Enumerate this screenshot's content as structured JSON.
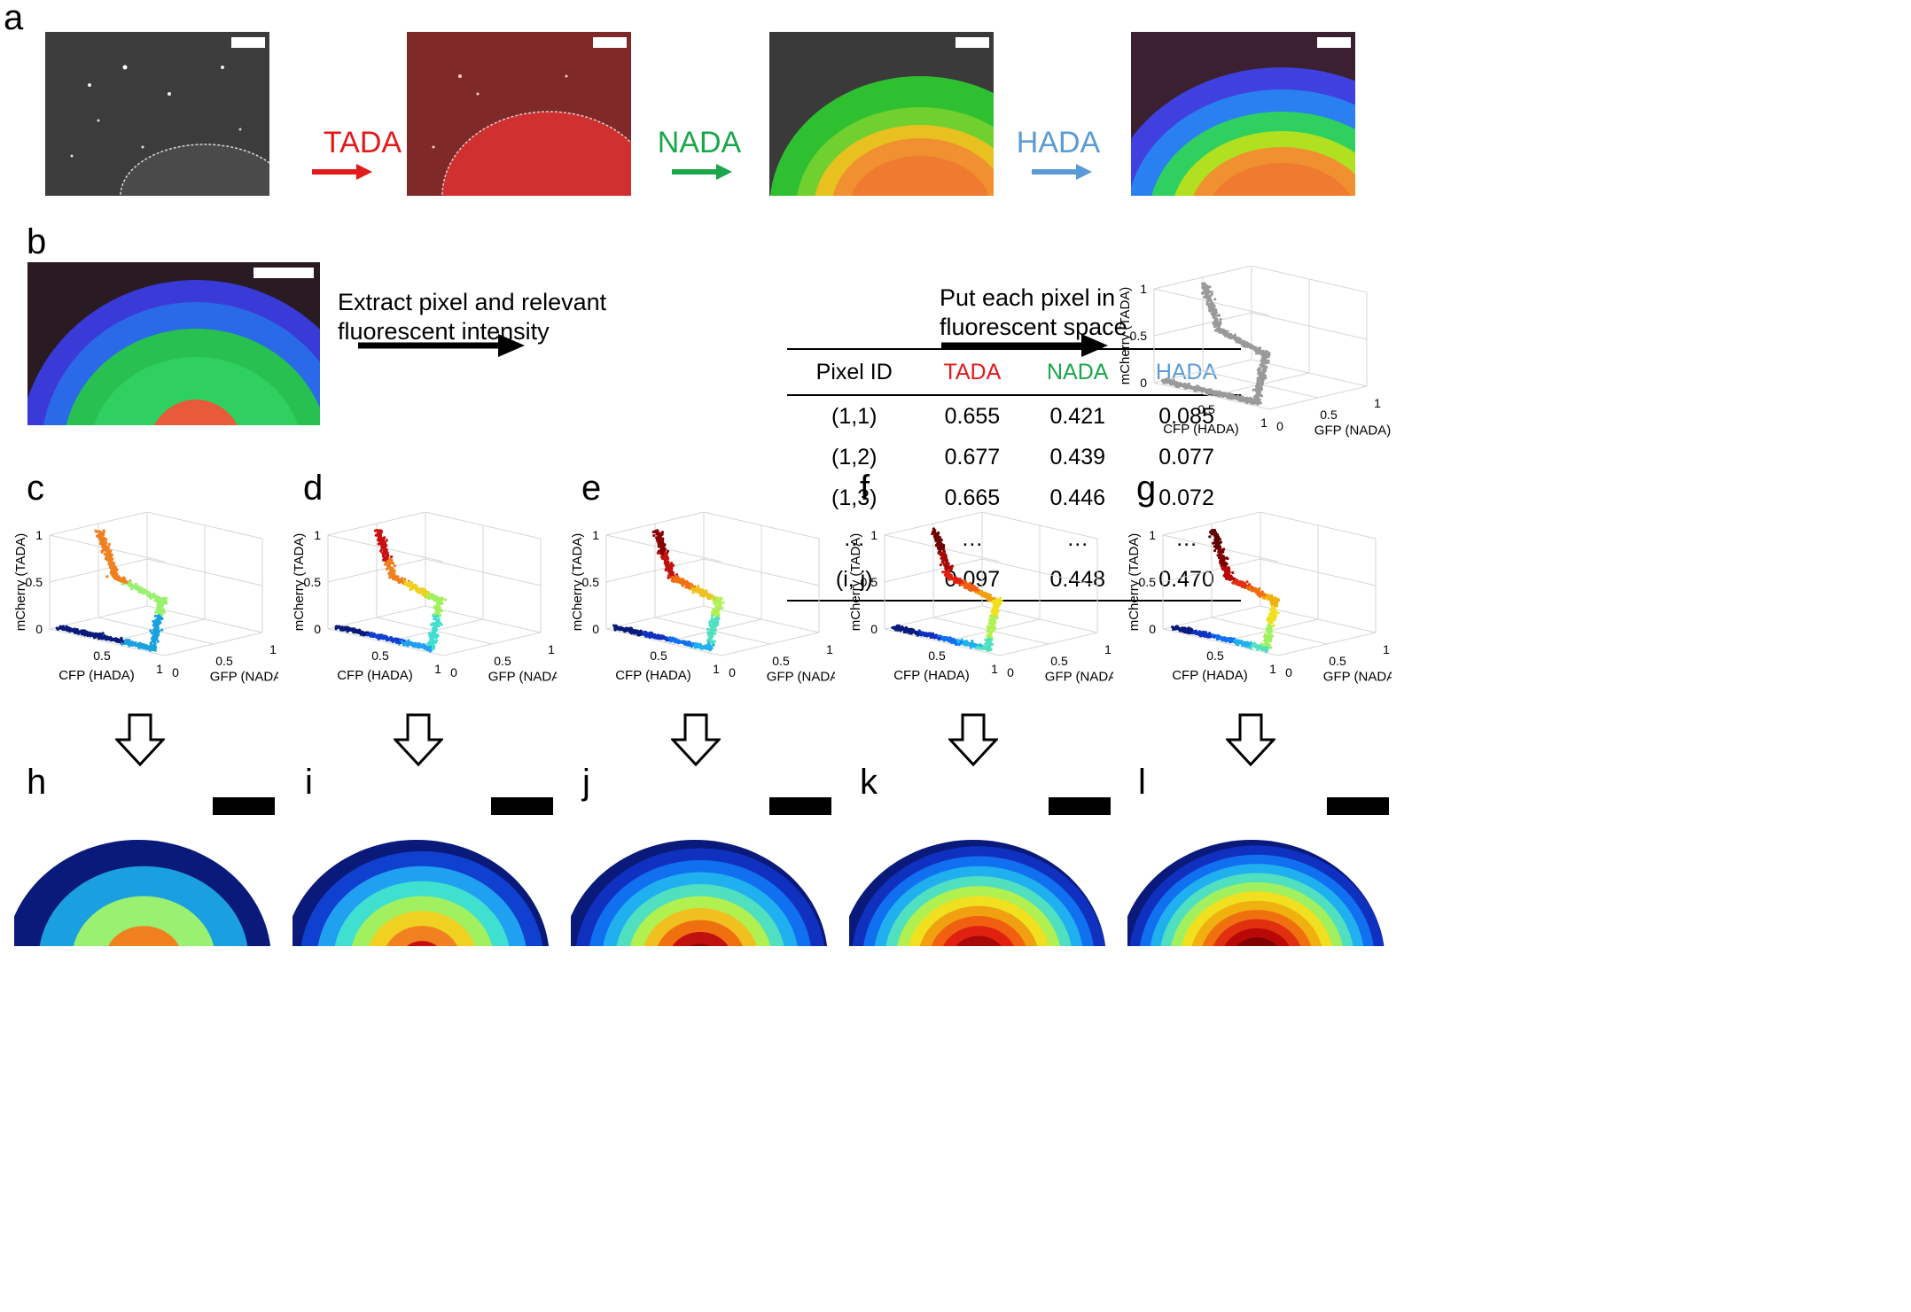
{
  "panels": {
    "a": "a",
    "b": "b",
    "c": "c",
    "d": "d",
    "e": "e",
    "f": "f",
    "g": "g",
    "h": "h",
    "i": "i",
    "j": "j",
    "k": "k",
    "l": "l"
  },
  "stains": [
    {
      "name": "TADA",
      "color": "#e31a1c"
    },
    {
      "name": "NADA",
      "color": "#1aa64a"
    },
    {
      "name": "HADA",
      "color": "#5b9bd5"
    }
  ],
  "panel_b": {
    "extract_text": "Extract pixel and relevant fluorescent intensity",
    "put_text": "Put each pixel in fluorescent space"
  },
  "table": {
    "headers": [
      "Pixel ID",
      "TADA",
      "NADA",
      "HADA"
    ],
    "header_colors": [
      "#000000",
      "#e31a1c",
      "#1aa64a",
      "#5b9bd5"
    ],
    "rows": [
      [
        "(1,1)",
        "0.655",
        "0.421",
        "0.085"
      ],
      [
        "(1,2)",
        "0.677",
        "0.439",
        "0.077"
      ],
      [
        "(1,3)",
        "0.665",
        "0.446",
        "0.072"
      ],
      [
        "…",
        "…",
        "…",
        "…"
      ],
      [
        "(i, j)",
        "0.097",
        "0.448",
        "0.470"
      ]
    ]
  },
  "plot_axes": {
    "z_label": "mCherry (TADA)",
    "x_label": "CFP (HADA)",
    "y_label": "GFP (NADA)",
    "z_ticks": [
      "0",
      "0.5",
      "1"
    ],
    "x_ticks": [
      "0.5",
      "1"
    ],
    "y_ticks": [
      "0",
      "0.5",
      "1"
    ]
  },
  "cluster_palettes": {
    "b": [
      "#9a9a9a"
    ],
    "c": [
      "#0a1a7a",
      "#1aa0e0",
      "#9af070",
      "#f08020"
    ],
    "d": [
      "#0a1a7a",
      "#1040d0",
      "#20a0f0",
      "#40e0d0",
      "#a0f060",
      "#f0d020",
      "#f08020",
      "#c81010"
    ],
    "e": [
      "#0a1a7a",
      "#1030c0",
      "#1070f0",
      "#20b0f0",
      "#50e0c0",
      "#b0f050",
      "#f0c020",
      "#f07010",
      "#c01010",
      "#8a0000"
    ],
    "f": [
      "#0a1a7a",
      "#1030c0",
      "#1070f0",
      "#20b0f0",
      "#50e0c0",
      "#b0f050",
      "#f0e020",
      "#f0a010",
      "#f06010",
      "#e02010",
      "#a80808",
      "#700000"
    ],
    "g": [
      "#0a1a7a",
      "#1030c0",
      "#1070f0",
      "#20b0f0",
      "#50e0c0",
      "#a0f060",
      "#f0e020",
      "#f0b010",
      "#f07010",
      "#e03010",
      "#b80808",
      "#800000",
      "#600000"
    ]
  }
}
